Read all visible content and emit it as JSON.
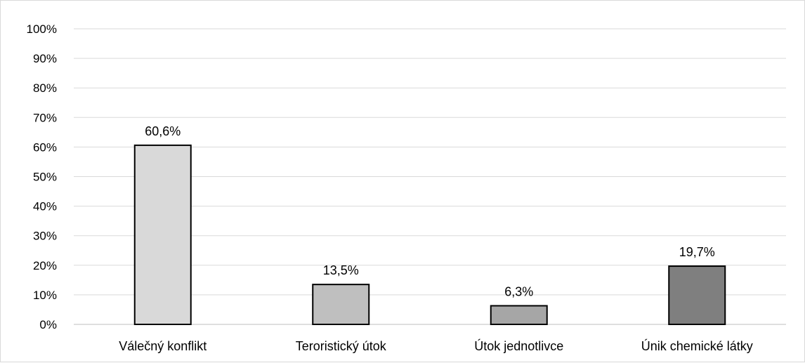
{
  "chart_data": {
    "type": "bar",
    "title": "",
    "xlabel": "",
    "ylabel": "",
    "categories": [
      "Válečný konflikt",
      "Teroristický útok",
      "Útok jednotlivce",
      "Únik chemické látky"
    ],
    "values": [
      60.6,
      13.5,
      6.3,
      19.7
    ],
    "data_labels": [
      "60,6%",
      "13,5%",
      "6,3%",
      "19,7%"
    ],
    "bar_colors": [
      "#d9d9d9",
      "#bfbfbf",
      "#a6a6a6",
      "#7f7f7f"
    ],
    "ylim": [
      0,
      100
    ],
    "yticks": [
      "0%",
      "10%",
      "20%",
      "30%",
      "40%",
      "50%",
      "60%",
      "70%",
      "80%",
      "90%",
      "100%"
    ],
    "grid": true,
    "legend": "none"
  }
}
